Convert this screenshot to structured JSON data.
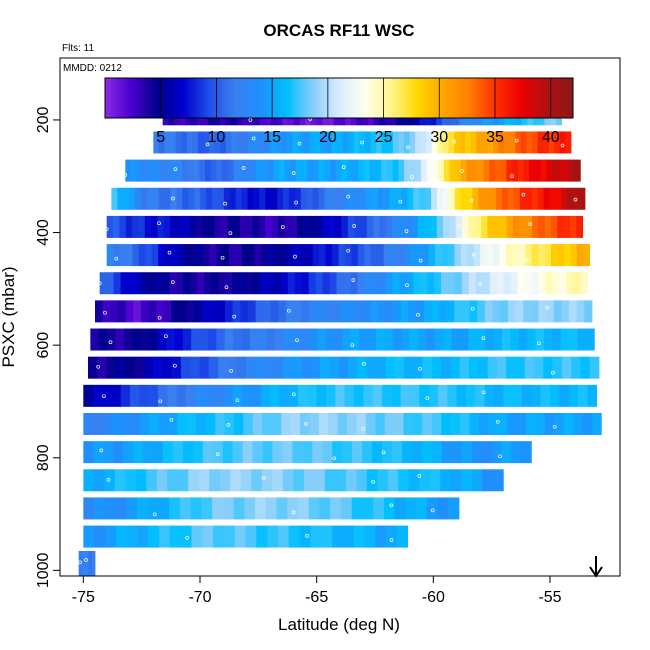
{
  "chart_data": {
    "type": "heatmap",
    "title": "ORCAS RF11 WSC",
    "flights_label": "Flts: 11",
    "date_label": "MMDD: 0212",
    "xlabel": "Latitude (deg N)",
    "ylabel": "PSXC (mbar)",
    "xlim": [
      -76,
      -52
    ],
    "ylim": [
      1010,
      90
    ],
    "x_ticks": [
      -75,
      -70,
      -65,
      -60,
      -55
    ],
    "x_tick_labels": [
      "-75",
      "-70",
      "-65",
      "-60",
      "-55"
    ],
    "y_ticks": [
      200,
      400,
      600,
      800,
      1000
    ],
    "y_tick_labels": [
      "200",
      "400",
      "600",
      "800",
      "1000"
    ],
    "colorbar": {
      "vmin": 0,
      "vmax": 42,
      "ticks": [
        5,
        10,
        15,
        20,
        25,
        30,
        35,
        40
      ],
      "tick_labels": [
        "5",
        "10",
        "15",
        "20",
        "25",
        "30",
        "35",
        "40"
      ],
      "colors": [
        "#8a2be2",
        "#4b00d0",
        "#00008b",
        "#0000cd",
        "#1e4fe8",
        "#3a7ff0",
        "#1e90ff",
        "#00bfff",
        "#87cefa",
        "#d8ecff",
        "#fffff0",
        "#fff68f",
        "#ffd700",
        "#ffa500",
        "#ff7f00",
        "#ff3000",
        "#ee0000",
        "#b01010",
        "#8b1a1a"
      ]
    },
    "bands": [
      {
        "p": 190,
        "lat_start": -71.6,
        "lat_end": -54.5,
        "values": [
          3,
          3,
          4,
          3,
          2,
          1,
          2,
          3,
          5,
          9,
          13,
          15,
          17,
          19
        ]
      },
      {
        "p": 240,
        "lat_start": -72.0,
        "lat_end": -54.1,
        "values": [
          12,
          11,
          10,
          12,
          14,
          15,
          15,
          16,
          17,
          20,
          28,
          30,
          33,
          35,
          36
        ]
      },
      {
        "p": 290,
        "lat_start": -73.2,
        "lat_end": -53.7,
        "values": [
          14,
          13,
          12,
          10,
          13,
          15,
          15,
          15,
          16,
          17,
          22,
          30,
          33,
          36,
          38,
          40
        ]
      },
      {
        "p": 340,
        "lat_start": -73.8,
        "lat_end": -53.5,
        "values": [
          18,
          12,
          11,
          10,
          8,
          7,
          9,
          12,
          14,
          15,
          18,
          27,
          32,
          35,
          37,
          41
        ]
      },
      {
        "p": 390,
        "lat_start": -74.0,
        "lat_end": -53.6,
        "values": [
          10,
          8,
          7,
          4,
          4,
          3,
          5,
          8,
          11,
          14,
          19,
          27,
          31,
          34,
          36
        ]
      },
      {
        "p": 440,
        "lat_start": -74.0,
        "lat_end": -53.3,
        "values": [
          13,
          10,
          6,
          4,
          4,
          5,
          7,
          9,
          11,
          14,
          18,
          22,
          25,
          28,
          30
        ]
      },
      {
        "p": 490,
        "lat_start": -74.3,
        "lat_end": -53.4,
        "values": [
          11,
          6,
          4,
          4,
          5,
          7,
          9,
          12,
          15,
          17,
          20,
          22,
          24,
          25
        ]
      },
      {
        "p": 540,
        "lat_start": -74.5,
        "lat_end": -53.2,
        "values": [
          4,
          2,
          4,
          7,
          10,
          12,
          13,
          14,
          15,
          17,
          19,
          19,
          19
        ]
      },
      {
        "p": 590,
        "lat_start": -74.7,
        "lat_end": -53.1,
        "values": [
          4,
          4,
          8,
          11,
          12,
          14,
          15,
          15,
          15,
          16,
          16,
          16
        ]
      },
      {
        "p": 640,
        "lat_start": -74.8,
        "lat_end": -52.9,
        "values": [
          4,
          5,
          9,
          12,
          14,
          15,
          16,
          16,
          17,
          17,
          17
        ]
      },
      {
        "p": 690,
        "lat_start": -75.0,
        "lat_end": -53.0,
        "values": [
          5,
          9,
          12,
          14,
          16,
          17,
          17,
          17,
          16,
          16,
          16
        ]
      },
      {
        "p": 740,
        "lat_start": -75.0,
        "lat_end": -52.8,
        "values": [
          12,
          14,
          16,
          17,
          19,
          19,
          18,
          17,
          15,
          15,
          15
        ]
      },
      {
        "p": 790,
        "lat_start": -75.0,
        "lat_end": -55.8,
        "values": [
          14,
          15,
          17,
          18,
          18,
          17,
          16,
          14,
          15
        ]
      },
      {
        "p": 840,
        "lat_start": -75.0,
        "lat_end": -57.0,
        "values": [
          15,
          17,
          19,
          19,
          18,
          17,
          16,
          14
        ]
      },
      {
        "p": 890,
        "lat_start": -75.0,
        "lat_end": -58.9,
        "values": [
          13,
          15,
          18,
          19,
          18,
          16,
          14
        ]
      },
      {
        "p": 940,
        "lat_start": -75.0,
        "lat_end": -61.1,
        "values": [
          14,
          16,
          18,
          17,
          16,
          15
        ]
      },
      {
        "p": 985,
        "lat_start": -75.2,
        "lat_end": -74.5,
        "values": [
          12
        ]
      }
    ],
    "grid": false,
    "legend": "colorbar-top",
    "marker": "down-arrow"
  }
}
